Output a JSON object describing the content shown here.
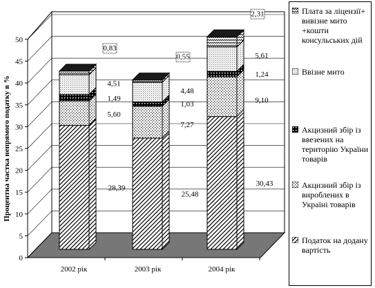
{
  "chart_data": {
    "type": "bar",
    "stacked": true,
    "three_d": true,
    "categories": [
      "2002 рік",
      "2003 рік",
      "2004 рік"
    ],
    "ylabel": "Процентна частка непрямого податку в %",
    "ylim": [
      0,
      50
    ],
    "yticks": [
      0,
      5,
      10,
      15,
      20,
      25,
      30,
      35,
      40,
      45,
      50
    ],
    "grid": true,
    "legend_position": "right",
    "series": [
      {
        "name": "Податок на додану вартість",
        "values": [
          28.39,
          25.48,
          30.43
        ],
        "labels": [
          "28,39",
          "25,48",
          "30,43"
        ],
        "pattern": "diagonal-hatch"
      },
      {
        "name": "Акцизний збір із вироблених в Україні товарів",
        "values": [
          5.6,
          7.27,
          9.1
        ],
        "labels": [
          "5,60",
          "7,27",
          "9,10"
        ],
        "pattern": "dots"
      },
      {
        "name": "Акцизний збір із ввезених на територію України товарів",
        "values": [
          1.49,
          1.03,
          1.24
        ],
        "labels": [
          "1,49",
          "1,03",
          "1,24"
        ],
        "pattern": "crosshatch"
      },
      {
        "name": "Ввізне мито",
        "values": [
          4.51,
          4.48,
          5.61
        ],
        "labels": [
          "4,51",
          "4,48",
          "5,61"
        ],
        "pattern": "fine-stipple"
      },
      {
        "name": "Плата за ліцензії+ вивізне мито +кошти консульських дій",
        "values": [
          0.83,
          0.55,
          2.31
        ],
        "labels": [
          "0,83",
          "0,55",
          "2,31"
        ],
        "pattern": "zigzag"
      }
    ],
    "colors": {
      "bar_fill": "#ffffff",
      "stroke": "#000000",
      "floor": "#777777",
      "wall": "#ffffff"
    }
  }
}
